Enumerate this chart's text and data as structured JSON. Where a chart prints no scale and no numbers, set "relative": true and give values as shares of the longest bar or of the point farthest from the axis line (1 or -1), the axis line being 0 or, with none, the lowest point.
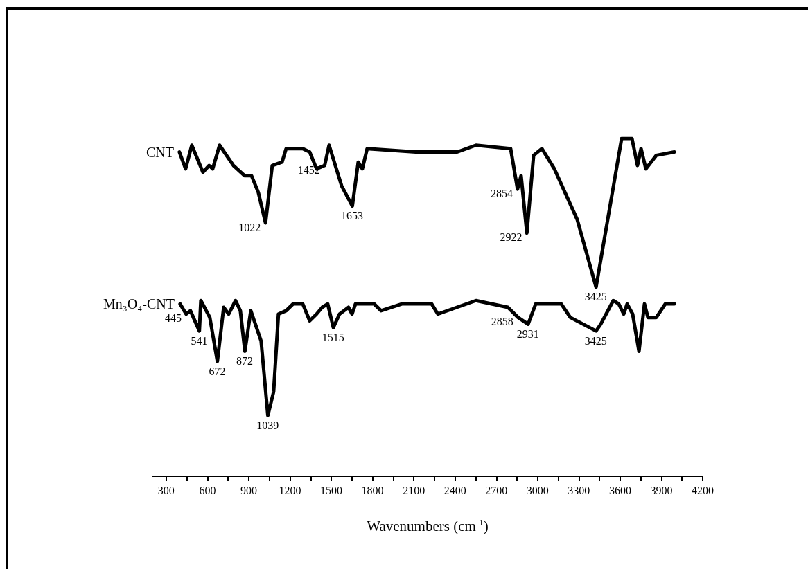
{
  "chart_data": {
    "type": "line",
    "relative": true,
    "xlabel": "Wavenumbers (cm$^{-1}$)",
    "xlim": [
      200,
      4200
    ],
    "xticks": [
      300,
      {
        "value": 450,
        "label": null
      },
      600,
      {
        "value": 750,
        "label": null
      },
      900,
      {
        "value": 1050,
        "label": null
      },
      1200,
      {
        "value": 1350,
        "label": null
      },
      1500,
      {
        "value": 1650,
        "label": null
      },
      1800,
      {
        "value": 1950,
        "label": null
      },
      2100,
      {
        "value": 2250,
        "label": null
      },
      2400,
      {
        "value": 2550,
        "label": null
      },
      2700,
      {
        "value": 2850,
        "label": null
      },
      3000,
      {
        "value": 3150,
        "label": null
      },
      3300,
      {
        "value": 3450,
        "label": null
      },
      3600,
      {
        "value": 3750,
        "label": null
      },
      3900,
      {
        "value": 4050,
        "label": null
      },
      4200
    ],
    "grid": false,
    "legend": false,
    "marker": "none",
    "line_style": "solid",
    "series": [
      {
        "name": "CNT",
        "color": "#000000",
        "x": [
          396,
          441,
          486,
          567,
          612,
          638,
          688,
          789,
          869,
          920,
          970,
          1022,
          1071,
          1142,
          1172,
          1293,
          1343,
          1393,
          1452,
          1484,
          1575,
          1653,
          1696,
          1726,
          1761,
          2114,
          2416,
          2552,
          2804,
          2854,
          2880,
          2922,
          2971,
          3031,
          3122,
          3288,
          3425,
          3611,
          3686,
          3726,
          3752,
          3787,
          3863,
          3994
        ],
        "values": [
          0.96,
          0.91,
          0.98,
          0.9,
          0.92,
          0.91,
          0.98,
          0.92,
          0.89,
          0.89,
          0.84,
          0.75,
          0.92,
          0.93,
          0.97,
          0.97,
          0.96,
          0.91,
          0.92,
          0.98,
          0.86,
          0.8,
          0.93,
          0.91,
          0.97,
          0.96,
          0.96,
          0.98,
          0.97,
          0.85,
          0.89,
          0.72,
          0.95,
          0.97,
          0.91,
          0.76,
          0.56,
          1,
          1,
          0.92,
          0.97,
          0.91,
          0.95,
          0.96
        ]
      },
      {
        "name": "Mn₃O₄-CNT",
        "color": "#000000",
        "x": [
          401,
          445,
          476,
          541,
          552,
          617,
          672,
          718,
          754,
          804,
          839,
          872,
          915,
          990,
          1039,
          1081,
          1116,
          1172,
          1222,
          1293,
          1343,
          1393,
          1434,
          1474,
          1515,
          1560,
          1625,
          1651,
          1676,
          1812,
          1862,
          2013,
          2114,
          2230,
          2275,
          2552,
          2784,
          2858,
          2931,
          2986,
          3172,
          3238,
          3425,
          3459,
          3550,
          3590,
          3626,
          3651,
          3691,
          3737,
          3777,
          3802,
          3863,
          3928,
          3994
        ],
        "values": [
          0.51,
          0.48,
          0.49,
          0.43,
          0.52,
          0.47,
          0.34,
          0.5,
          0.48,
          0.52,
          0.49,
          0.37,
          0.49,
          0.4,
          0.18,
          0.25,
          0.48,
          0.49,
          0.51,
          0.51,
          0.46,
          0.48,
          0.5,
          0.51,
          0.44,
          0.48,
          0.5,
          0.48,
          0.51,
          0.51,
          0.49,
          0.51,
          0.51,
          0.51,
          0.48,
          0.52,
          0.5,
          0.47,
          0.45,
          0.51,
          0.51,
          0.47,
          0.43,
          0.45,
          0.52,
          0.51,
          0.48,
          0.51,
          0.48,
          0.37,
          0.51,
          0.47,
          0.47,
          0.51,
          0.51
        ]
      }
    ],
    "annotations": [
      {
        "text": "1022",
        "x": 1022,
        "y": 0.75
      },
      {
        "text": "1452",
        "x": 1452,
        "y": 0.92
      },
      {
        "text": "1653",
        "x": 1653,
        "y": 0.8
      },
      {
        "text": "2854",
        "x": 2854,
        "y": 0.85
      },
      {
        "text": "2922",
        "x": 2922,
        "y": 0.72
      },
      {
        "text": "3425",
        "x": 3425,
        "y": 0.56
      },
      {
        "text": "445",
        "x": 445,
        "y": 0.48
      },
      {
        "text": "541",
        "x": 541,
        "y": 0.43
      },
      {
        "text": "672",
        "x": 672,
        "y": 0.34
      },
      {
        "text": "872",
        "x": 872,
        "y": 0.37
      },
      {
        "text": "1039",
        "x": 1039,
        "y": 0.18
      },
      {
        "text": "1515",
        "x": 1515,
        "y": 0.44
      },
      {
        "text": "2858",
        "x": 2858,
        "y": 0.47
      },
      {
        "text": "2931",
        "x": 2931,
        "y": 0.45
      },
      {
        "text": "3425",
        "x": 3425,
        "y": 0.43
      }
    ]
  }
}
